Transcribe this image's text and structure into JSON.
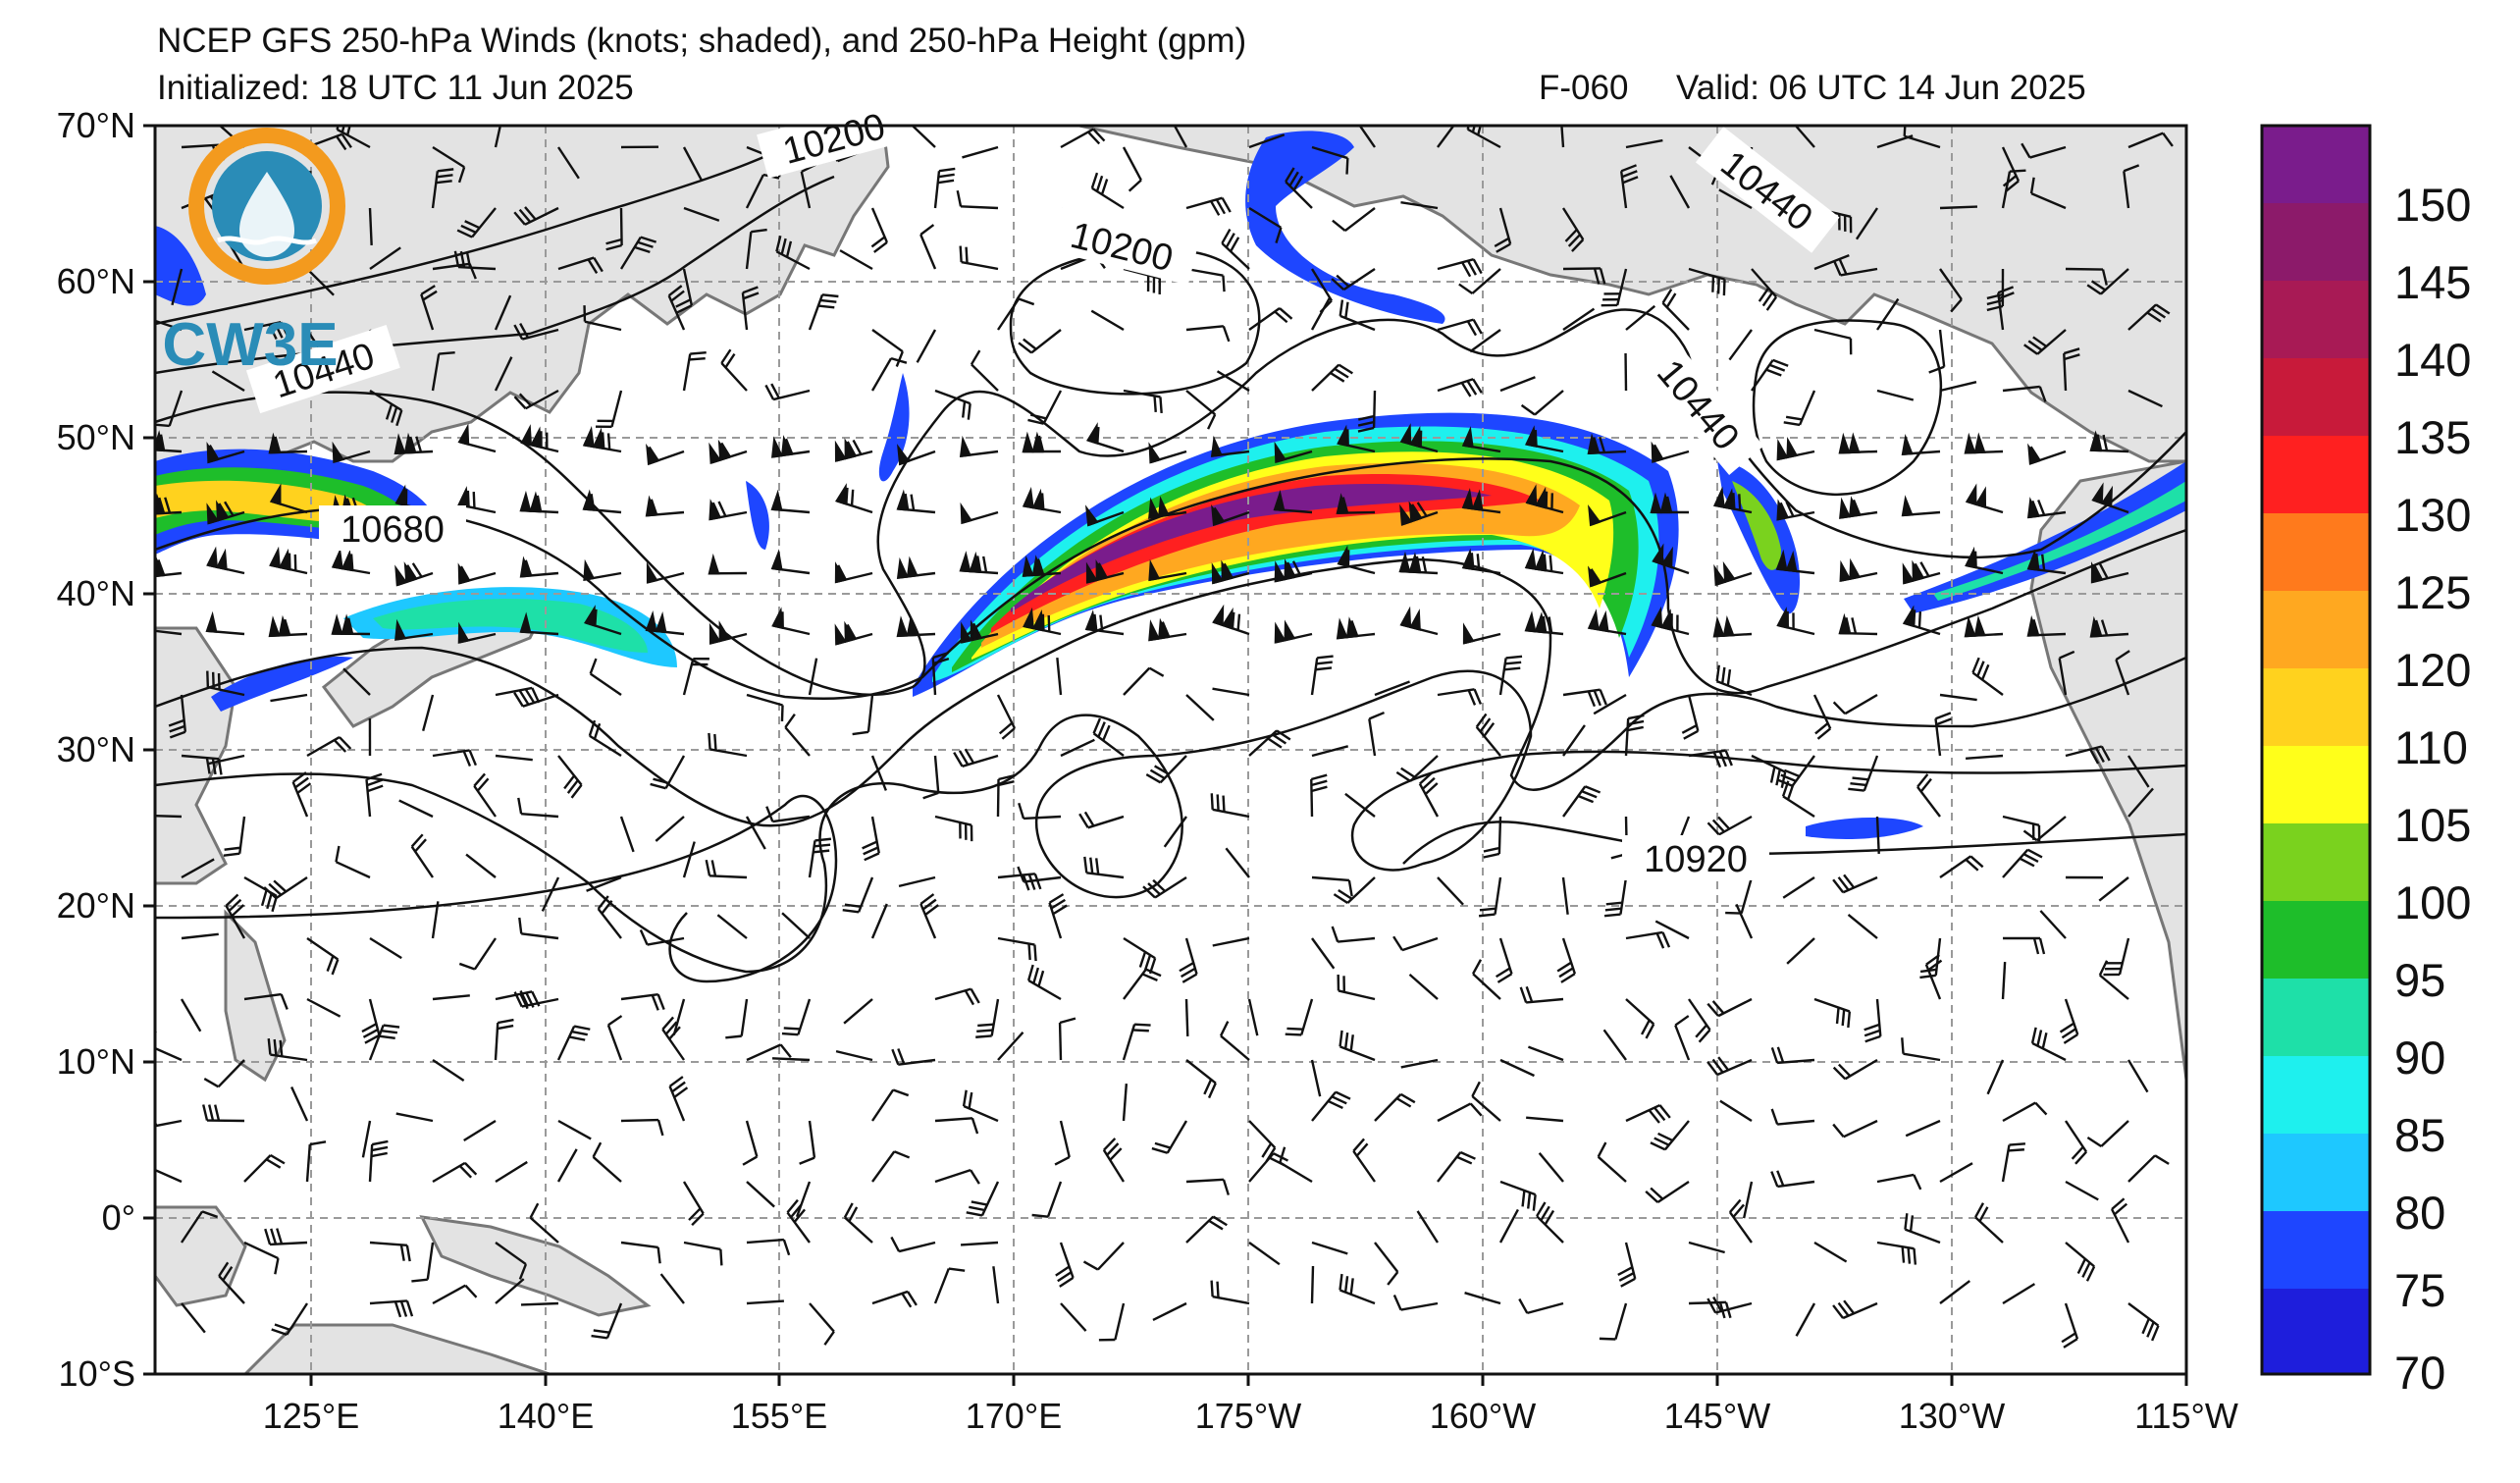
{
  "title": {
    "line1": "NCEP GFS 250-hPa Winds (knots; shaded), and 250-hPa Height (gpm)",
    "initialized": "Initialized: 18 UTC 11 Jun 2025",
    "forecast": "F-060",
    "valid": "Valid: 06 UTC 14 Jun 2025"
  },
  "logo": {
    "text": "CW3E",
    "ring_color": "#f39a1e",
    "fill_color": "#2a8cb7"
  },
  "axes": {
    "lat_labels": [
      "70°N",
      "60°N",
      "50°N",
      "40°N",
      "30°N",
      "20°N",
      "10°N",
      "0°",
      "10°S"
    ],
    "lon_labels": [
      "125°E",
      "140°E",
      "155°E",
      "170°E",
      "175°W",
      "160°W",
      "145°W",
      "130°W",
      "115°W"
    ]
  },
  "contour_labels": [
    "10200",
    "10200",
    "10440",
    "10440",
    "10440",
    "10680",
    "10920"
  ],
  "colorbar": {
    "labels": [
      "150",
      "145",
      "140",
      "135",
      "130",
      "125",
      "120",
      "110",
      "105",
      "100",
      "95",
      "90",
      "85",
      "80",
      "75",
      "70"
    ],
    "colors": [
      "#7a1c8c",
      "#8c1a6a",
      "#a81a55",
      "#c81a3a",
      "#ff2020",
      "#ff7a1c",
      "#ffa820",
      "#ffd21e",
      "#ffff1a",
      "#7ad21e",
      "#1ebe2a",
      "#1ee0a8",
      "#1ef0ee",
      "#1ec8ff",
      "#1e46ff",
      "#1e1edc"
    ]
  }
}
